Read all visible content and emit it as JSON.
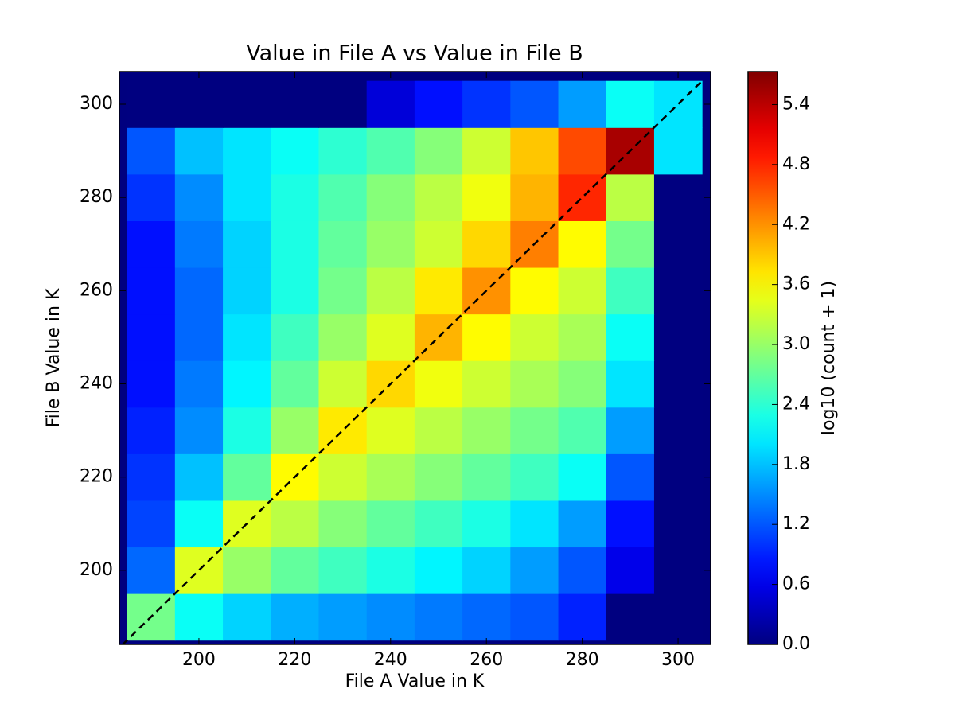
{
  "chart_data": {
    "type": "hexbin",
    "title": "Value in File A vs Value in File B",
    "x_label": "File A Value in K",
    "y_label": "File B Value in K",
    "colorbar_label": "log10 (count + 1)",
    "colormap": "jet",
    "x": [
      190,
      200,
      210,
      220,
      230,
      240,
      250,
      260,
      270,
      280,
      290,
      300
    ],
    "y": [
      190,
      200,
      210,
      220,
      230,
      240,
      250,
      260,
      270,
      280,
      290,
      300
    ],
    "z": [
      [
        2.8,
        2.2,
        1.9,
        1.7,
        1.6,
        1.5,
        1.4,
        1.3,
        1.2,
        0.9,
        0,
        0
      ],
      [
        1.3,
        3.4,
        3.0,
        2.7,
        2.5,
        2.3,
        2.1,
        1.9,
        1.6,
        1.2,
        0.6,
        0
      ],
      [
        1.1,
        2.2,
        3.4,
        3.2,
        2.9,
        2.7,
        2.5,
        2.3,
        2.0,
        1.6,
        0.8,
        0
      ],
      [
        1.0,
        1.8,
        2.7,
        3.6,
        3.3,
        3.1,
        2.9,
        2.7,
        2.5,
        2.2,
        1.2,
        0
      ],
      [
        0.9,
        1.5,
        2.3,
        3.0,
        3.7,
        3.4,
        3.2,
        3.0,
        2.8,
        2.6,
        1.6,
        0
      ],
      [
        0.8,
        1.4,
        2.1,
        2.7,
        3.3,
        3.8,
        3.5,
        3.3,
        3.1,
        2.9,
        2.0,
        0
      ],
      [
        0.8,
        1.3,
        2.0,
        2.5,
        3.0,
        3.4,
        4.0,
        3.6,
        3.3,
        3.1,
        2.2,
        0
      ],
      [
        0.8,
        1.3,
        1.9,
        2.3,
        2.8,
        3.2,
        3.7,
        4.2,
        3.6,
        3.3,
        2.5,
        0
      ],
      [
        0.8,
        1.4,
        1.9,
        2.3,
        2.7,
        3.0,
        3.3,
        3.8,
        4.3,
        3.6,
        2.8,
        0
      ],
      [
        1.0,
        1.5,
        2.0,
        2.3,
        2.6,
        2.9,
        3.2,
        3.5,
        4.0,
        4.8,
        3.2,
        0
      ],
      [
        1.2,
        1.8,
        2.0,
        2.2,
        2.4,
        2.6,
        2.9,
        3.3,
        3.9,
        4.6,
        5.5,
        2.0
      ],
      [
        0,
        0,
        0,
        0,
        0,
        0.5,
        0.8,
        1.0,
        1.2,
        1.6,
        2.2,
        2.0
      ]
    ],
    "bin_width": 10,
    "background_color": "#00007f",
    "xlim": [
      183.4,
      306.8
    ],
    "ylim": [
      184.1,
      307.0
    ],
    "xticks": [
      200,
      220,
      240,
      260,
      280,
      300
    ],
    "yticks": [
      200,
      220,
      240,
      260,
      280,
      300
    ],
    "clim": [
      0,
      5.73
    ],
    "cticks": [
      {
        "value": 0,
        "label": "0.0"
      },
      0.6,
      1.2,
      1.8,
      2.4,
      {
        "value": 3,
        "label": "3.0"
      },
      3.6,
      4.2,
      4.8,
      5.4
    ],
    "reference_line": {
      "x": [
        184,
        305
      ],
      "y": [
        184,
        305
      ],
      "color": "#000000"
    }
  }
}
